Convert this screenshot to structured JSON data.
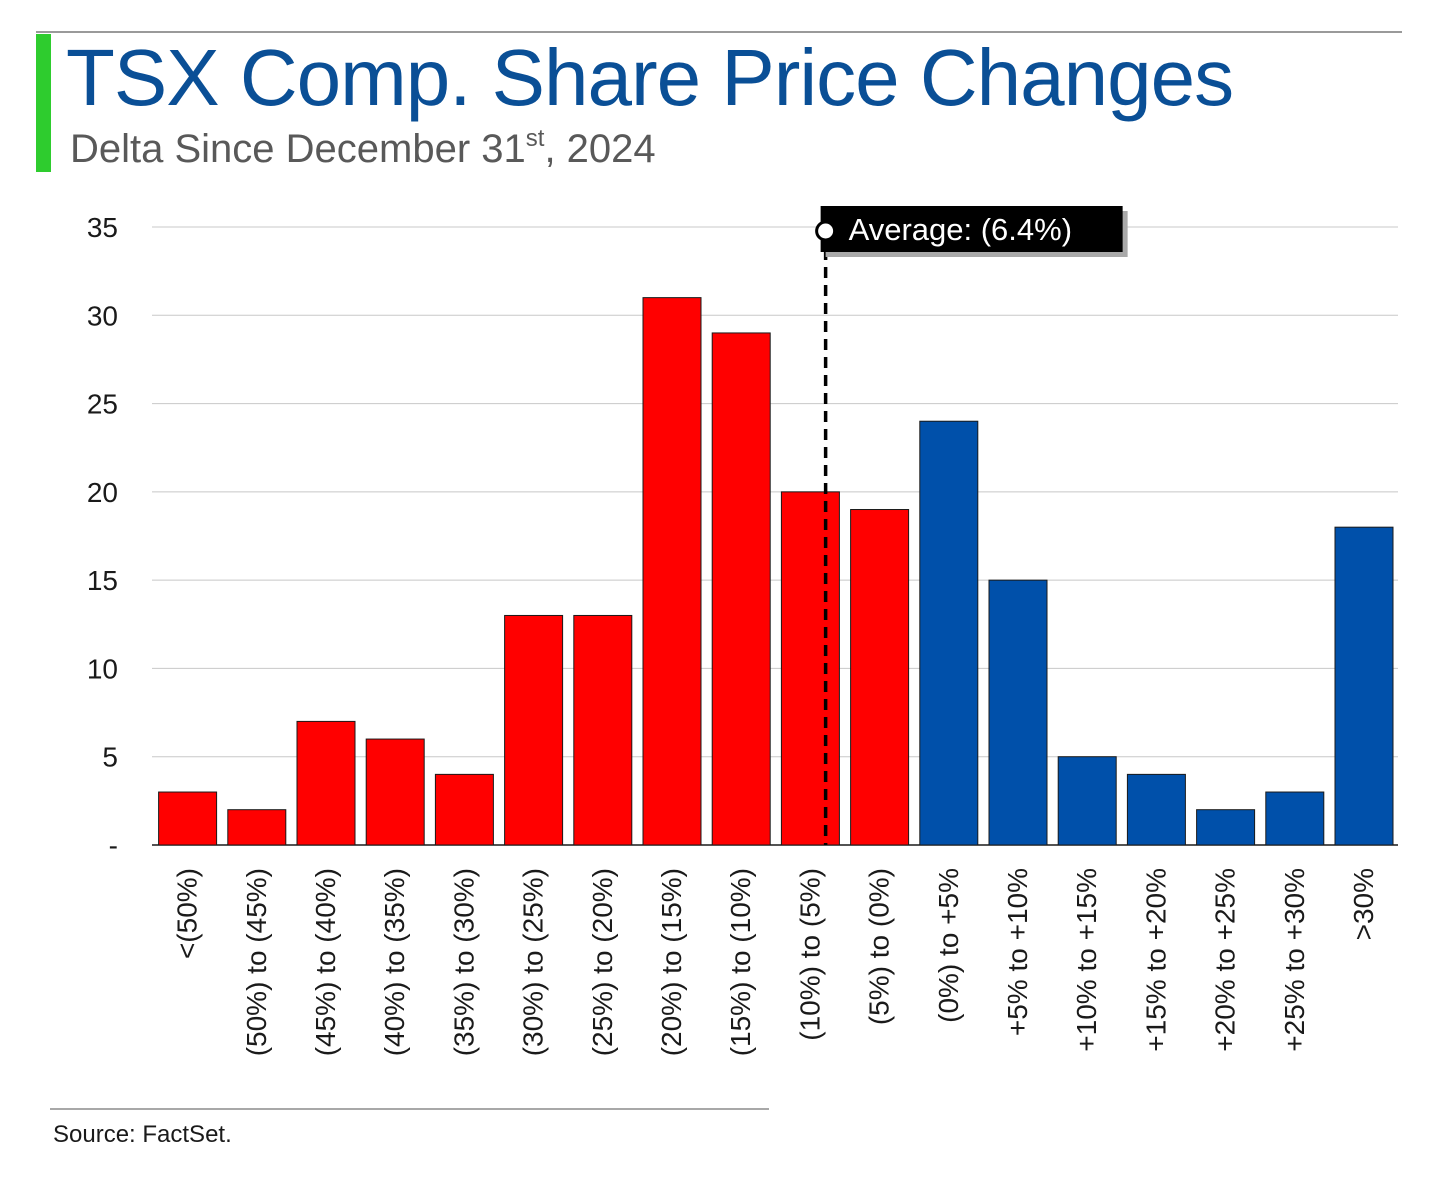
{
  "header": {
    "title": "TSX Comp. Share Price Changes",
    "subtitle_main": "Delta Since December 31",
    "subtitle_sup": "st",
    "subtitle_tail": ", 2024"
  },
  "source": "Source: FactSet.",
  "colors": {
    "accent": "#2ecc2e",
    "title": "#0a4f96",
    "negative": "#ff0000",
    "positive": "#0050aa",
    "average_line": "#000000"
  },
  "chart_data": {
    "type": "bar",
    "categories": [
      "<(50%)",
      "(50%) to (45%)",
      "(45%) to (40%)",
      "(40%) to (35%)",
      "(35%) to (30%)",
      "(30%) to (25%)",
      "(25%) to (20%)",
      "(20%) to (15%)",
      "(15%) to (10%)",
      "(10%) to (5%)",
      "(5%) to (0%)",
      "(0%) to +5%",
      "+5% to +10%",
      "+10% to +15%",
      "+15% to +20%",
      "+20% to +25%",
      "+25% to +30%",
      ">30%"
    ],
    "values": [
      3,
      2,
      7,
      6,
      4,
      13,
      13,
      31,
      29,
      20,
      19,
      24,
      15,
      5,
      4,
      2,
      3,
      18
    ],
    "bar_color_groups": [
      "negative",
      "negative",
      "negative",
      "negative",
      "negative",
      "negative",
      "negative",
      "negative",
      "negative",
      "negative",
      "negative",
      "positive",
      "positive",
      "positive",
      "positive",
      "positive",
      "positive",
      "positive"
    ],
    "ylim": [
      0,
      35
    ],
    "yticks": [
      0,
      5,
      10,
      15,
      20,
      25,
      30,
      35
    ],
    "ytick_labels": [
      "-",
      "5",
      "10",
      "15",
      "20",
      "25",
      "30",
      "35"
    ],
    "title": "",
    "xlabel": "",
    "ylabel": "",
    "grid": true,
    "legend": "none",
    "average_marker": {
      "label": "Average: (6.4%)",
      "value_percent": -6.4
    }
  }
}
